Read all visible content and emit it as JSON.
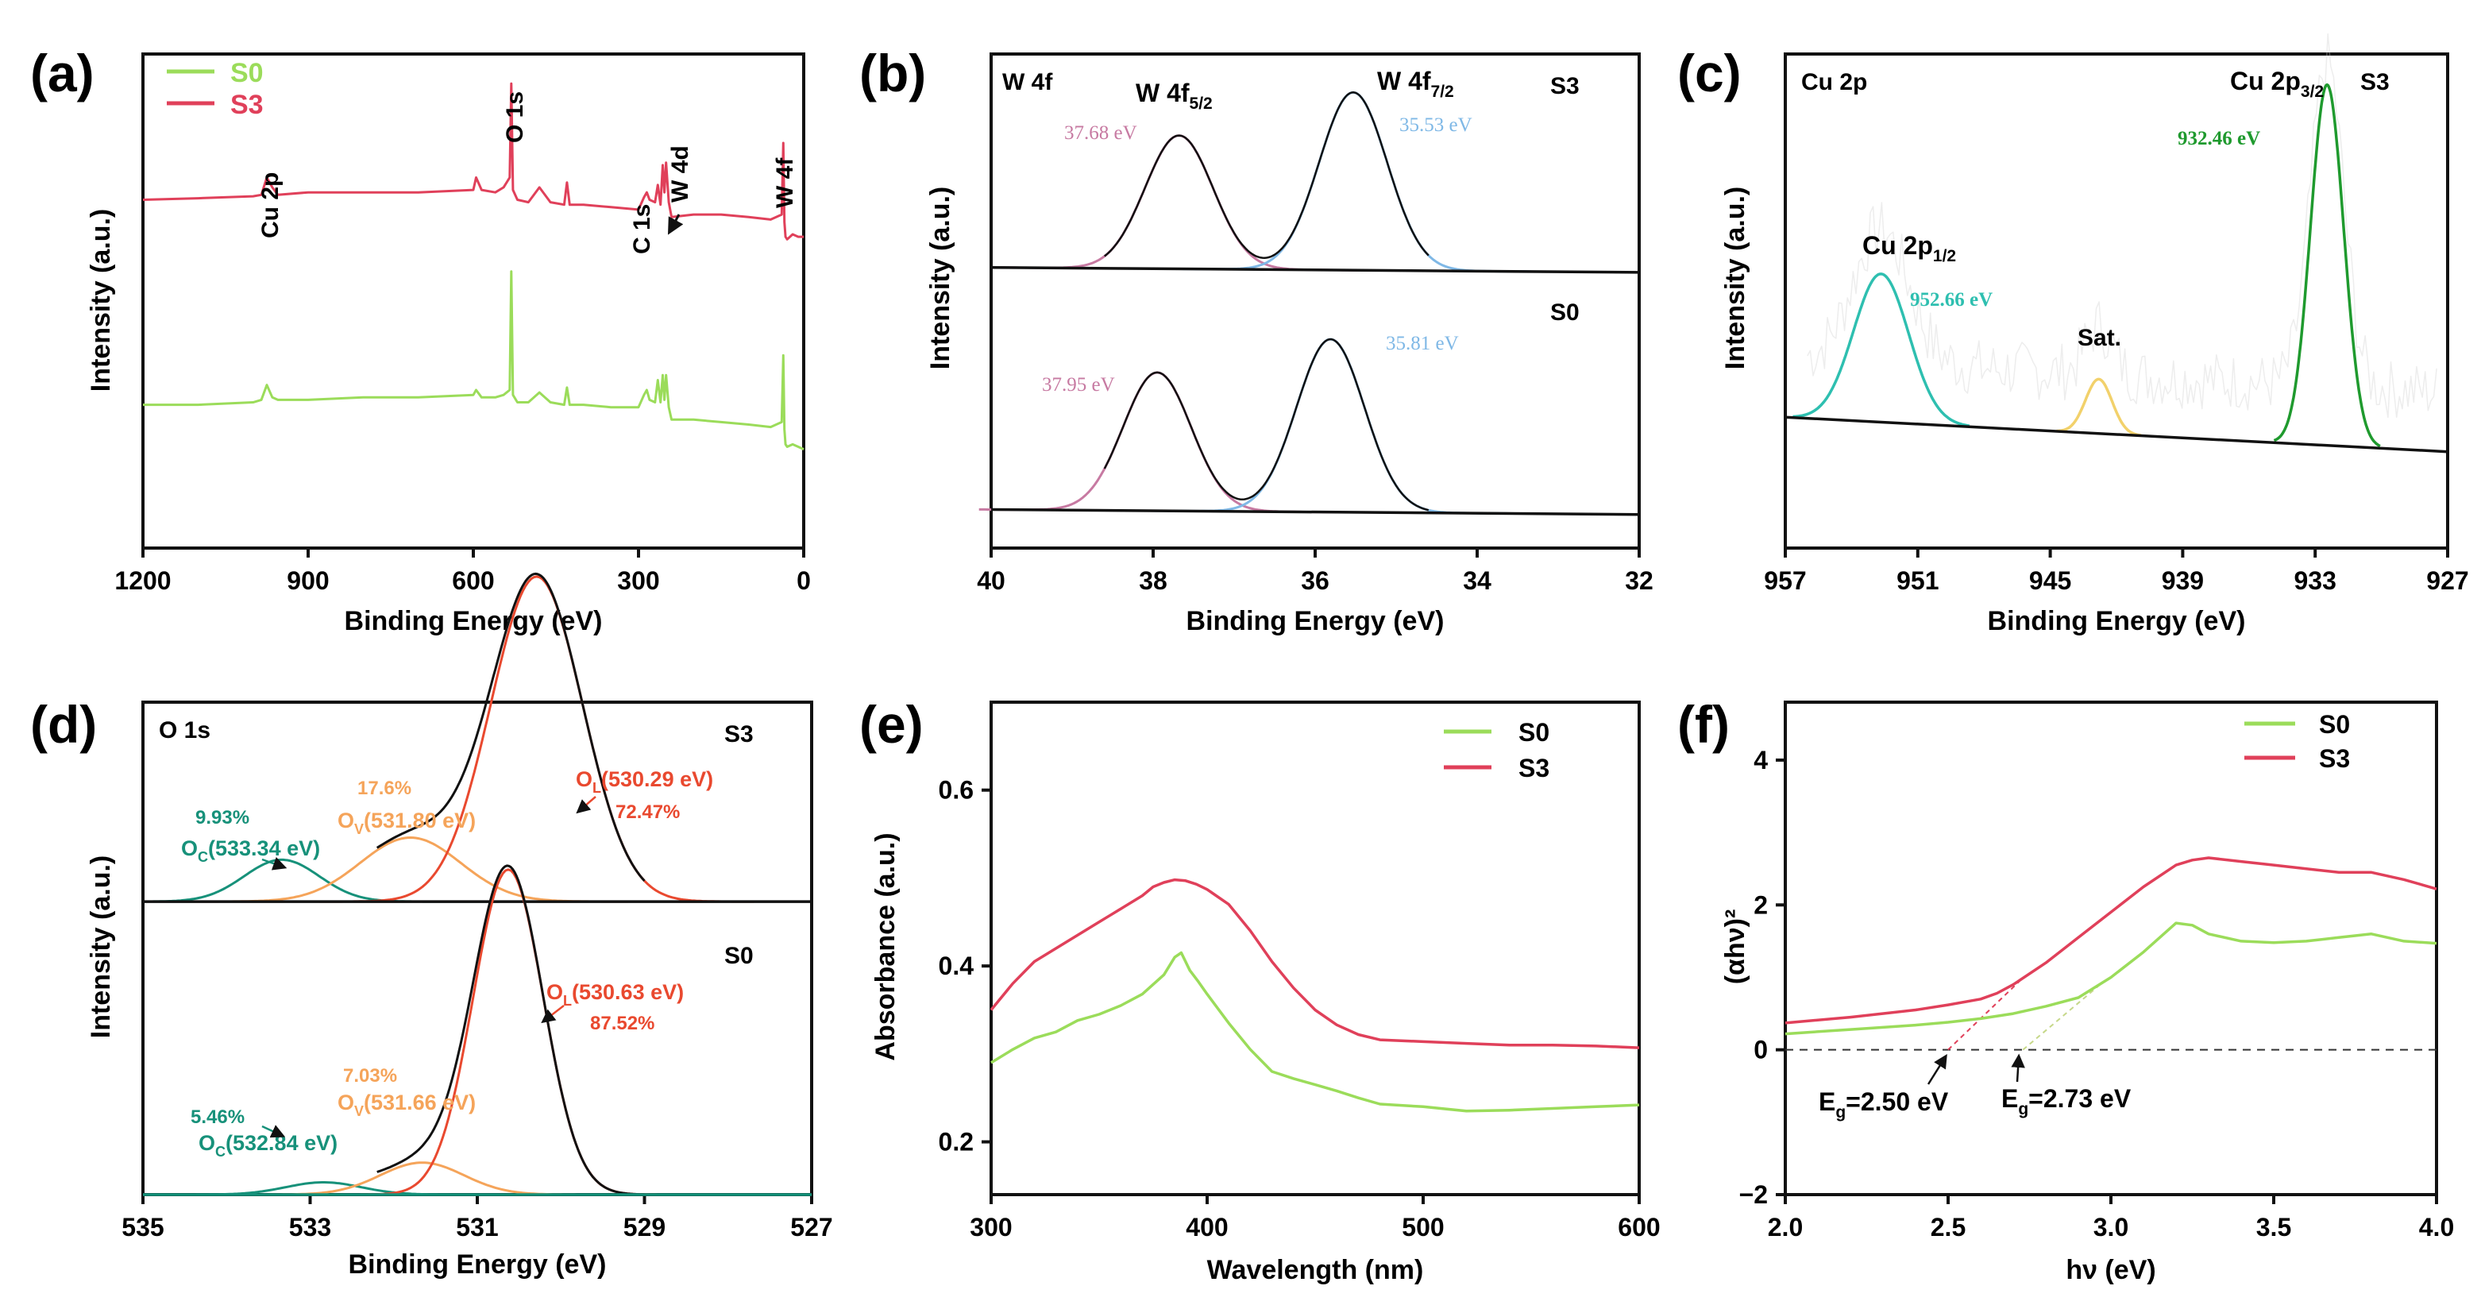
{
  "chart_data": [
    {
      "panel": "(a)",
      "type": "line",
      "title": "",
      "xlabel": "Binding Energy (eV)",
      "ylabel": "Intensity (a.u.)",
      "xlim": [
        1200,
        0
      ],
      "ylim": [
        0,
        10
      ],
      "xticks": [
        1200,
        900,
        600,
        300,
        0
      ],
      "xtick_labels": [
        "1200",
        "900",
        "600",
        "300",
        "0"
      ],
      "legend": [
        {
          "name": "S0",
          "color": "#9bdc5a"
        },
        {
          "name": "S3",
          "color": "#e0405a"
        }
      ],
      "series": [
        {
          "name": "S3",
          "color": "#e0405a",
          "x": [
            1200,
            1100,
            1000,
            985,
            975,
            965,
            955,
            900,
            800,
            700,
            600,
            595,
            585,
            560,
            545,
            534,
            531,
            528,
            520,
            500,
            480,
            460,
            435,
            430,
            425,
            400,
            350,
            300,
            290,
            285,
            280,
            270,
            265,
            260,
            256,
            253,
            250,
            245,
            240,
            200,
            150,
            100,
            60,
            40,
            37,
            35,
            33,
            30,
            20,
            10,
            0
          ],
          "y": [
            7.05,
            7.08,
            7.12,
            7.15,
            7.5,
            7.3,
            7.15,
            7.2,
            7.2,
            7.2,
            7.25,
            7.5,
            7.25,
            7.2,
            7.3,
            7.5,
            9.4,
            7.25,
            7.05,
            7.0,
            7.3,
            7.0,
            6.95,
            7.4,
            6.95,
            6.95,
            6.9,
            6.85,
            7.1,
            7.2,
            7.05,
            7.0,
            7.35,
            6.95,
            7.75,
            7.2,
            7.8,
            7.0,
            6.7,
            6.75,
            6.75,
            6.7,
            6.65,
            6.75,
            8.2,
            6.6,
            6.3,
            6.25,
            6.35,
            6.3,
            6.3
          ]
        },
        {
          "name": "S0",
          "color": "#9bdc5a",
          "x": [
            1200,
            1100,
            1000,
            985,
            975,
            965,
            955,
            900,
            800,
            700,
            600,
            595,
            585,
            560,
            545,
            534,
            531,
            528,
            520,
            500,
            480,
            460,
            435,
            430,
            425,
            400,
            350,
            300,
            290,
            285,
            280,
            270,
            265,
            260,
            256,
            253,
            250,
            245,
            240,
            200,
            150,
            100,
            60,
            40,
            37,
            35,
            33,
            30,
            20,
            10,
            0
          ],
          "y": [
            2.9,
            2.9,
            2.95,
            3.0,
            3.3,
            3.05,
            3.0,
            3.0,
            3.05,
            3.05,
            3.1,
            3.2,
            3.05,
            3.05,
            3.1,
            3.2,
            5.6,
            3.1,
            2.95,
            2.95,
            3.15,
            2.95,
            2.9,
            3.25,
            2.9,
            2.9,
            2.85,
            2.85,
            3.1,
            3.2,
            3.0,
            2.95,
            3.4,
            2.95,
            3.5,
            3.0,
            3.5,
            2.85,
            2.6,
            2.6,
            2.55,
            2.5,
            2.45,
            2.55,
            3.9,
            2.4,
            2.1,
            2.05,
            2.1,
            2.05,
            2.0
          ]
        }
      ],
      "annotations": [
        {
          "text": "Cu 2p",
          "x": 965,
          "y": 7.85
        },
        {
          "text": "O 1s",
          "x": 531,
          "y": 9.7
        },
        {
          "text": "C 1s",
          "x": 285,
          "y": 7.7
        },
        {
          "text": "W 4d",
          "x": 250,
          "y": 8.7
        },
        {
          "text": "W 4f",
          "x": 35,
          "y": 8.55
        }
      ]
    },
    {
      "panel": "(b)",
      "type": "line",
      "xlabel": "Binding Energy (eV)",
      "ylabel": "Intensity (a.u.)",
      "xlim": [
        40,
        32
      ],
      "ylim": [
        0,
        10
      ],
      "xticks": [
        40,
        38,
        36,
        34,
        32
      ],
      "xtick_labels": [
        "40",
        "38",
        "36",
        "34",
        "32"
      ],
      "header": "W 4f",
      "peaks": [
        {
          "sample": "S3",
          "component": "W 4f5/2",
          "center": 37.68,
          "sigma": 0.42,
          "height": 2.7,
          "baseline": [
            5.68,
            5.58
          ],
          "color": "#c77aa2",
          "label": "37.68 eV"
        },
        {
          "sample": "S3",
          "component": "W 4f7/2",
          "center": 35.53,
          "sigma": 0.42,
          "height": 3.6,
          "baseline": [
            5.68,
            5.58
          ],
          "color": "#7fb8e6",
          "label": "35.53 eV"
        },
        {
          "sample": "S0",
          "component": "W 4f5/2",
          "center": 37.95,
          "sigma": 0.42,
          "height": 2.8,
          "baseline": [
            0.78,
            0.68
          ],
          "color": "#c77aa2",
          "label": "37.95 eV"
        },
        {
          "sample": "S0",
          "component": "W 4f7/2",
          "center": 35.81,
          "sigma": 0.42,
          "height": 3.5,
          "baseline": [
            0.78,
            0.68
          ],
          "color": "#7fb8e6",
          "label": "35.81 eV"
        }
      ],
      "envelope_color": "#111111",
      "sample_labels": [
        "S3",
        "S0"
      ],
      "peak_titles": [
        {
          "base": "W 4f",
          "sub": "5/2"
        },
        {
          "base": "W 4f",
          "sub": "7/2"
        }
      ]
    },
    {
      "panel": "(c)",
      "type": "line",
      "xlabel": "Binding Energy (eV)",
      "ylabel": "Intensity (a.u.)",
      "xlim": [
        957,
        927
      ],
      "ylim": [
        0,
        10
      ],
      "xticks": [
        957,
        951,
        945,
        939,
        933,
        927
      ],
      "xtick_labels": [
        "957",
        "951",
        "945",
        "939",
        "933",
        "927"
      ],
      "header": "Cu 2p",
      "sample_label": "S3",
      "baseline": [
        2.65,
        1.95
      ],
      "peaks": [
        {
          "component": "Cu 2p1/2",
          "center": 952.66,
          "sigma": 1.25,
          "height": 3.0,
          "color": "#2ebfb0",
          "label": "952.66 eV"
        },
        {
          "component": "Sat.",
          "center": 942.8,
          "sigma": 0.6,
          "height": 1.1,
          "color": "#f2d16b"
        },
        {
          "component": "Cu 2p3/2",
          "center": 932.46,
          "sigma": 0.75,
          "height": 7.3,
          "color": "#1f9a2e",
          "label": "932.46 eV"
        }
      ],
      "peak_titles": [
        {
          "base": "Cu 2p",
          "sub": "1/2"
        },
        {
          "base": "Sat.",
          "sub": ""
        },
        {
          "base": "Cu 2p",
          "sub": "3/2"
        }
      ]
    },
    {
      "panel": "(d)",
      "type": "line",
      "xlabel": "Binding Energy (eV)",
      "ylabel": "Intensity (a.u.)",
      "xlim": [
        535,
        527
      ],
      "ylim": [
        0,
        10
      ],
      "xticks": [
        535,
        533,
        531,
        529,
        527
      ],
      "xtick_labels": [
        "535",
        "533",
        "531",
        "529",
        "527"
      ],
      "header": "O 1s",
      "samples": [
        {
          "name": "S3",
          "baseline": 5.95,
          "components": [
            {
              "name": "OC",
              "center": 533.34,
              "sigma": 0.45,
              "height": 0.85,
              "color": "#17917a",
              "label_value": "(533.34 eV)",
              "percent": "9.93%"
            },
            {
              "name": "OV",
              "center": 531.8,
              "sigma": 0.6,
              "height": 1.3,
              "color": "#f5a45a",
              "label_value": "(531.80 eV)",
              "percent": "17.6%"
            },
            {
              "name": "OL",
              "center": 530.29,
              "sigma": 0.55,
              "height": 6.6,
              "color": "#e9492f",
              "label_value": "(530.29 eV)",
              "percent": "72.47%"
            }
          ]
        },
        {
          "name": "S0",
          "baseline": 0.0,
          "components": [
            {
              "name": "OC",
              "center": 532.84,
              "sigma": 0.45,
              "height": 0.25,
              "color": "#17917a",
              "label_value": "(532.84 eV)",
              "percent": "5.46%"
            },
            {
              "name": "OV",
              "center": 531.66,
              "sigma": 0.5,
              "height": 0.65,
              "color": "#f5a45a",
              "label_value": "(531.66 eV)",
              "percent": "7.03%"
            },
            {
              "name": "OL",
              "center": 530.63,
              "sigma": 0.42,
              "height": 6.6,
              "color": "#e9492f",
              "label_value": "(530.63 eV)",
              "percent": "87.52%"
            }
          ]
        }
      ],
      "component_subscripts": {
        "OC": "C",
        "OV": "V",
        "OL": "L"
      },
      "envelope_color": "#111111",
      "flat_baseline_color": "#139079"
    },
    {
      "panel": "(e)",
      "type": "line",
      "xlabel": "Wavelength (nm)",
      "ylabel": "Absorbance (a.u.)",
      "xlim": [
        300,
        600
      ],
      "ylim": [
        0.14,
        0.7
      ],
      "xticks": [
        300,
        400,
        500,
        600
      ],
      "xtick_labels": [
        "300",
        "400",
        "500",
        "600"
      ],
      "yticks": [
        0.2,
        0.4,
        0.6
      ],
      "ytick_labels": [
        "0.2",
        "0.4",
        "0.6"
      ],
      "legend": [
        {
          "name": "S0",
          "color": "#9bdc5a"
        },
        {
          "name": "S3",
          "color": "#e0405a"
        }
      ],
      "series": [
        {
          "name": "S3",
          "color": "#e0405a",
          "x": [
            300,
            310,
            320,
            330,
            340,
            350,
            360,
            370,
            375,
            380,
            385,
            390,
            395,
            400,
            410,
            420,
            430,
            440,
            450,
            460,
            470,
            480,
            500,
            520,
            540,
            560,
            580,
            600
          ],
          "y": [
            0.35,
            0.38,
            0.405,
            0.42,
            0.435,
            0.45,
            0.465,
            0.48,
            0.49,
            0.495,
            0.498,
            0.497,
            0.493,
            0.487,
            0.47,
            0.44,
            0.405,
            0.375,
            0.35,
            0.333,
            0.322,
            0.316,
            0.314,
            0.312,
            0.31,
            0.31,
            0.309,
            0.307
          ]
        },
        {
          "name": "S0",
          "color": "#9bdc5a",
          "x": [
            300,
            310,
            320,
            330,
            340,
            350,
            360,
            370,
            380,
            385,
            388,
            392,
            396,
            400,
            410,
            420,
            430,
            440,
            450,
            460,
            470,
            480,
            500,
            520,
            540,
            560,
            580,
            600
          ],
          "y": [
            0.29,
            0.305,
            0.318,
            0.325,
            0.338,
            0.345,
            0.355,
            0.368,
            0.39,
            0.41,
            0.415,
            0.395,
            0.382,
            0.368,
            0.335,
            0.305,
            0.28,
            0.272,
            0.265,
            0.258,
            0.25,
            0.243,
            0.24,
            0.235,
            0.236,
            0.238,
            0.24,
            0.242
          ]
        }
      ]
    },
    {
      "panel": "(f)",
      "type": "line",
      "xlabel": "hν (eV)",
      "ylabel": "(αhν)²",
      "xlim": [
        2.0,
        4.0
      ],
      "ylim": [
        -2,
        4.8
      ],
      "xticks": [
        2.0,
        2.5,
        3.0,
        3.5,
        4.0
      ],
      "xtick_labels": [
        "2.0",
        "2.5",
        "3.0",
        "3.5",
        "4.0"
      ],
      "yticks": [
        -2,
        0,
        2,
        4
      ],
      "ytick_labels": [
        "−2",
        "0",
        "2",
        "4"
      ],
      "legend": [
        {
          "name": "S0",
          "color": "#9bdc5a"
        },
        {
          "name": "S3",
          "color": "#e0405a"
        }
      ],
      "series": [
        {
          "name": "S3",
          "color": "#e0405a",
          "x": [
            2.0,
            2.2,
            2.4,
            2.5,
            2.6,
            2.65,
            2.7,
            2.8,
            2.9,
            3.0,
            3.1,
            3.2,
            3.25,
            3.3,
            3.4,
            3.5,
            3.6,
            3.7,
            3.8,
            3.9,
            4.0
          ],
          "y": [
            0.37,
            0.45,
            0.55,
            0.62,
            0.7,
            0.78,
            0.9,
            1.2,
            1.55,
            1.9,
            2.25,
            2.55,
            2.62,
            2.65,
            2.6,
            2.55,
            2.5,
            2.45,
            2.45,
            2.35,
            2.22
          ]
        },
        {
          "name": "S0",
          "color": "#9bdc5a",
          "x": [
            2.0,
            2.2,
            2.4,
            2.5,
            2.6,
            2.7,
            2.8,
            2.9,
            3.0,
            3.1,
            3.15,
            3.2,
            3.25,
            3.3,
            3.4,
            3.5,
            3.6,
            3.7,
            3.8,
            3.9,
            4.0
          ],
          "y": [
            0.22,
            0.28,
            0.34,
            0.38,
            0.43,
            0.5,
            0.6,
            0.72,
            1.0,
            1.35,
            1.55,
            1.75,
            1.72,
            1.6,
            1.5,
            1.48,
            1.5,
            1.55,
            1.6,
            1.5,
            1.47
          ]
        }
      ],
      "tangents": [
        {
          "x": [
            2.5,
            2.72
          ],
          "y": [
            0.0,
            0.95
          ],
          "color": "#e0405a"
        },
        {
          "x": [
            2.73,
            2.98
          ],
          "y": [
            0.0,
            0.95
          ],
          "color": "#c6d889"
        }
      ],
      "zero_line": 0,
      "annotations": [
        {
          "base": "E",
          "sub": "g",
          "value": "=2.50 eV",
          "point_x": 2.5
        },
        {
          "base": "E",
          "sub": "g",
          "value": "=2.73 eV",
          "point_x": 2.73
        }
      ]
    }
  ]
}
